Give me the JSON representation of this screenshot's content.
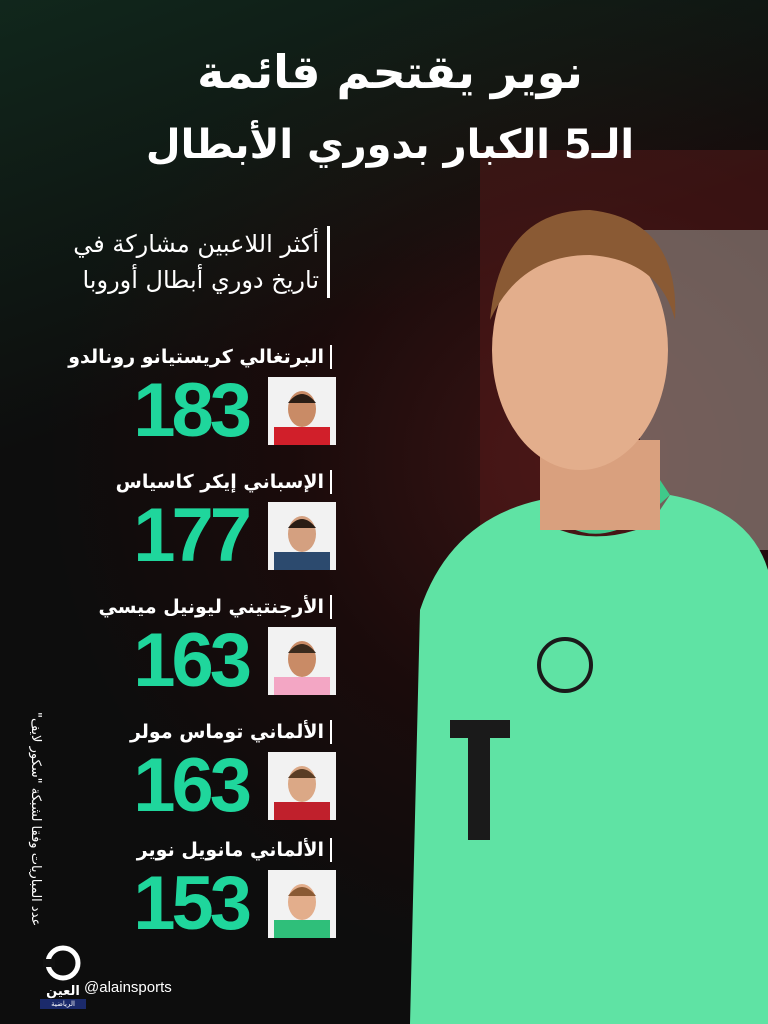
{
  "title": {
    "line1": "نوير يقتحم قائمة",
    "line2": "الـ5 الكبار بدوري الأبطال"
  },
  "subtitle": {
    "line1": "أكثر اللاعبين مشاركة في",
    "line2": "تاريخ دوري أبطال أوروبا"
  },
  "players": [
    {
      "name": "البرتغالي كريستيانو رونالدو",
      "matches": "183",
      "shirt": "#d11f2a"
    },
    {
      "name": "الإسباني إيكر كاسياس",
      "matches": "177",
      "shirt": "#2c4a6e"
    },
    {
      "name": "الأرجنتيني ليونيل ميسي",
      "matches": "163",
      "shirt": "#f3a6c4"
    },
    {
      "name": "الألماني توماس مولر",
      "matches": "163",
      "shirt": "#c0202c"
    },
    {
      "name": "الألماني مانويل نوير",
      "matches": "153",
      "shirt": "#2fbf7a"
    }
  ],
  "source_note": "عدد المباريات وفقا لشبكة \"سكور لايف\"",
  "brand": {
    "logo_text": "العين",
    "logo_sub": "الرياضية",
    "handle": "@alainsports"
  },
  "colors": {
    "accent": "#1fd69c",
    "jersey": "#5fe3a4"
  }
}
